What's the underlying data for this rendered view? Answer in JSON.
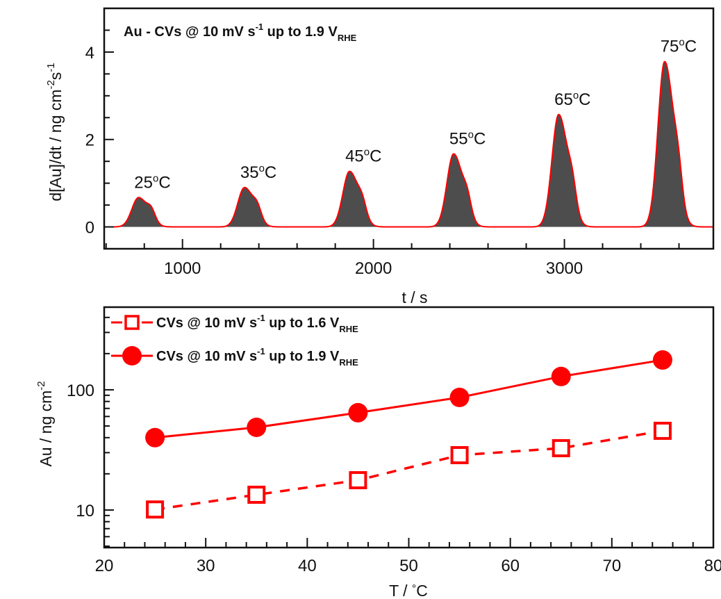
{
  "colors": {
    "series_red": "#ff0000",
    "fill_gray": "#4d4d4d",
    "axis": "#111111"
  },
  "chart_data": [
    {
      "type": "area",
      "title": "Au - CVs @ 10 mV s⁻¹ up to 1.9 V_RHE",
      "title_parts": {
        "main": "Au - CVs @ 10 mV s",
        "sup": "-1",
        "mid": " up to 1.9 V",
        "sub": "RHE"
      },
      "xlabel": "t / s",
      "ylabel": "d[Au]/dt / ng cm⁻² s⁻¹",
      "ylabel_parts": {
        "main": "d[Au]/dt / ng cm",
        "sup1": "-2",
        "mid": "s",
        "sup2": "-1"
      },
      "xlim": [
        590,
        3780
      ],
      "ylim": [
        -0.5,
        5.0
      ],
      "xticks": [
        1000,
        2000,
        3000
      ],
      "xtick_labels": [
        "1000",
        "2000",
        "3000"
      ],
      "yticks": [
        0,
        2,
        4
      ],
      "ytick_labels": [
        "0",
        "2",
        "4"
      ],
      "x_minor_step": 200,
      "y_minor_step": 0.5,
      "grid": false,
      "baseline": 0,
      "peaks": [
        {
          "label": "25°C",
          "label_num": "25",
          "t": 770,
          "height": 0.67,
          "shoulder_t": 835,
          "shoulder_height": 0.25
        },
        {
          "label": "35°C",
          "label_num": "35",
          "t": 1325,
          "height": 0.9,
          "shoulder_t": 1390,
          "shoulder_height": 0.28
        },
        {
          "label": "45°C",
          "label_num": "45",
          "t": 1875,
          "height": 1.27,
          "shoulder_t": 1940,
          "shoulder_height": 0.32
        },
        {
          "label": "55°C",
          "label_num": "55",
          "t": 2420,
          "height": 1.67,
          "shoulder_t": 2490,
          "shoulder_height": 0.4
        },
        {
          "label": "65°C",
          "label_num": "65",
          "t": 2970,
          "height": 2.57,
          "shoulder_t": 3040,
          "shoulder_height": 0.55
        },
        {
          "label": "75°C",
          "label_num": "75",
          "t": 3525,
          "height": 3.78,
          "shoulder_t": 3595,
          "shoulder_height": 0.7
        }
      ]
    },
    {
      "type": "line",
      "xlabel": "T / °C",
      "xlabel_parts": {
        "main": "T / ",
        "deg": "°",
        "unit": "C"
      },
      "ylabel": "Au / ng cm⁻²",
      "ylabel_parts": {
        "main": "Au / ng cm",
        "sup": "-2"
      },
      "yscale": "log",
      "xlim": [
        20,
        80
      ],
      "ylim": [
        4.87,
        487
      ],
      "xticks": [
        20,
        30,
        40,
        50,
        60,
        70,
        80
      ],
      "xtick_labels": [
        "20",
        "30",
        "40",
        "50",
        "60",
        "70",
        "80"
      ],
      "x_minor_step": 2,
      "yticks": [
        10,
        100
      ],
      "ytick_labels": [
        "10",
        "100"
      ],
      "grid": false,
      "legend_position": "top-left",
      "x": [
        25,
        35,
        45,
        55,
        65,
        75
      ],
      "series": [
        {
          "name": "CVs @ 10 mV s⁻¹ up to 1.6 V_RHE",
          "name_parts": {
            "main": "CVs @ 10 mV s",
            "sup": "-1",
            "mid": " up to 1.6 V",
            "sub": "RHE"
          },
          "marker": "open-square",
          "line": "dashed",
          "values": [
            10.1,
            13.4,
            17.7,
            28.6,
            32.7,
            45.6
          ]
        },
        {
          "name": "CVs @ 10 mV s⁻¹ up to 1.9 V_RHE",
          "name_parts": {
            "main": "CVs @ 10 mV s",
            "sup": "-1",
            "mid": " up to 1.9 V",
            "sub": "RHE"
          },
          "marker": "filled-circle",
          "line": "solid",
          "values": [
            40.0,
            48.7,
            64.5,
            86.4,
            129,
            177
          ]
        }
      ]
    }
  ]
}
